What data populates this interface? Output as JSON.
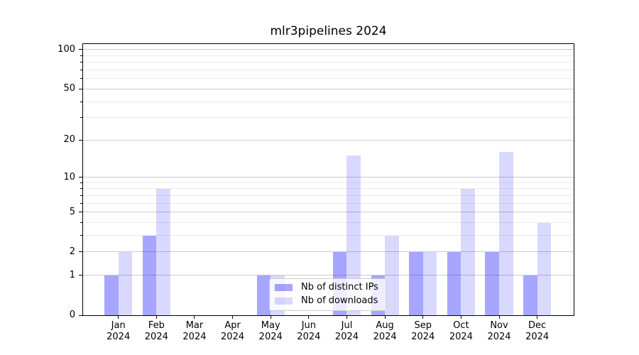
{
  "title": "mlr3pipelines 2024",
  "chart_data": {
    "type": "bar",
    "title": "mlr3pipelines 2024",
    "xlabel": "",
    "ylabel": "",
    "categories": [
      "Jan 2024",
      "Feb 2024",
      "Mar 2024",
      "Apr 2024",
      "May 2024",
      "Jun 2024",
      "Jul 2024",
      "Aug 2024",
      "Sep 2024",
      "Oct 2024",
      "Nov 2024",
      "Dec 2024"
    ],
    "series": [
      {
        "name": "Nb of distinct IPs",
        "color": "rgba(0,0,255,0.35)",
        "values": [
          1,
          3,
          0,
          0,
          1,
          0,
          2,
          1,
          2,
          2,
          2,
          1
        ]
      },
      {
        "name": "Nb of downloads",
        "color": "rgba(0,0,255,0.15)",
        "values": [
          2,
          8,
          0,
          0,
          1,
          0,
          15,
          3,
          2,
          8,
          16,
          4
        ]
      }
    ],
    "y_scale": "log1p",
    "ylim": [
      0,
      100
    ],
    "y_major_ticks": [
      0,
      1,
      2,
      5,
      10,
      20,
      50,
      100
    ],
    "y_minor_ticks": [
      3,
      4,
      6,
      7,
      8,
      9,
      30,
      40,
      60,
      70,
      80,
      90
    ],
    "grid": "both",
    "legend_position": "lower center"
  },
  "colors": {
    "grid_major": "#cbcbcb",
    "grid_minor": "#ebebeb",
    "axis": "#000000",
    "background": "#ffffff"
  }
}
